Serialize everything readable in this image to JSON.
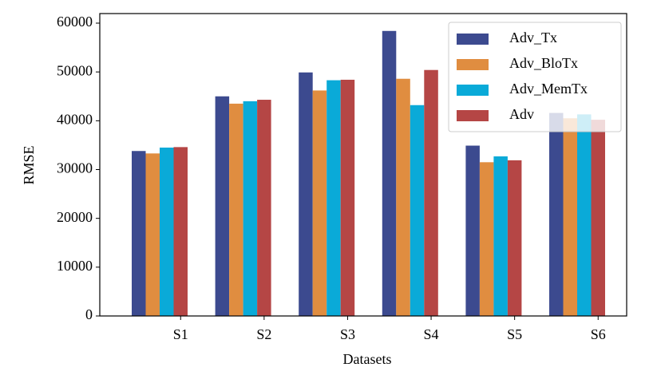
{
  "chart_data": {
    "type": "bar",
    "x_label": "Datasets",
    "y_label": "RMSE",
    "categories": [
      "S1",
      "S2",
      "S3",
      "S4",
      "S5",
      "S6"
    ],
    "series": [
      {
        "name": "Adv_Tx",
        "color": "#3c4a8f",
        "values": [
          33800,
          45000,
          49900,
          58400,
          34900,
          41600
        ]
      },
      {
        "name": "Adv_BloTx",
        "color": "#e08d40",
        "values": [
          33300,
          43500,
          46200,
          48600,
          31500,
          40500
        ]
      },
      {
        "name": "Adv_MemTx",
        "color": "#0aaad8",
        "values": [
          34500,
          44000,
          48300,
          43200,
          32700,
          41300
        ]
      },
      {
        "name": "Adv",
        "color": "#b54645",
        "values": [
          34600,
          44300,
          48400,
          50400,
          31900,
          40200
        ]
      }
    ],
    "ylim": [
      0,
      61960
    ],
    "yticks": [
      0,
      10000,
      20000,
      30000,
      40000,
      50000,
      60000
    ],
    "legend": "upper right",
    "grid": false
  }
}
